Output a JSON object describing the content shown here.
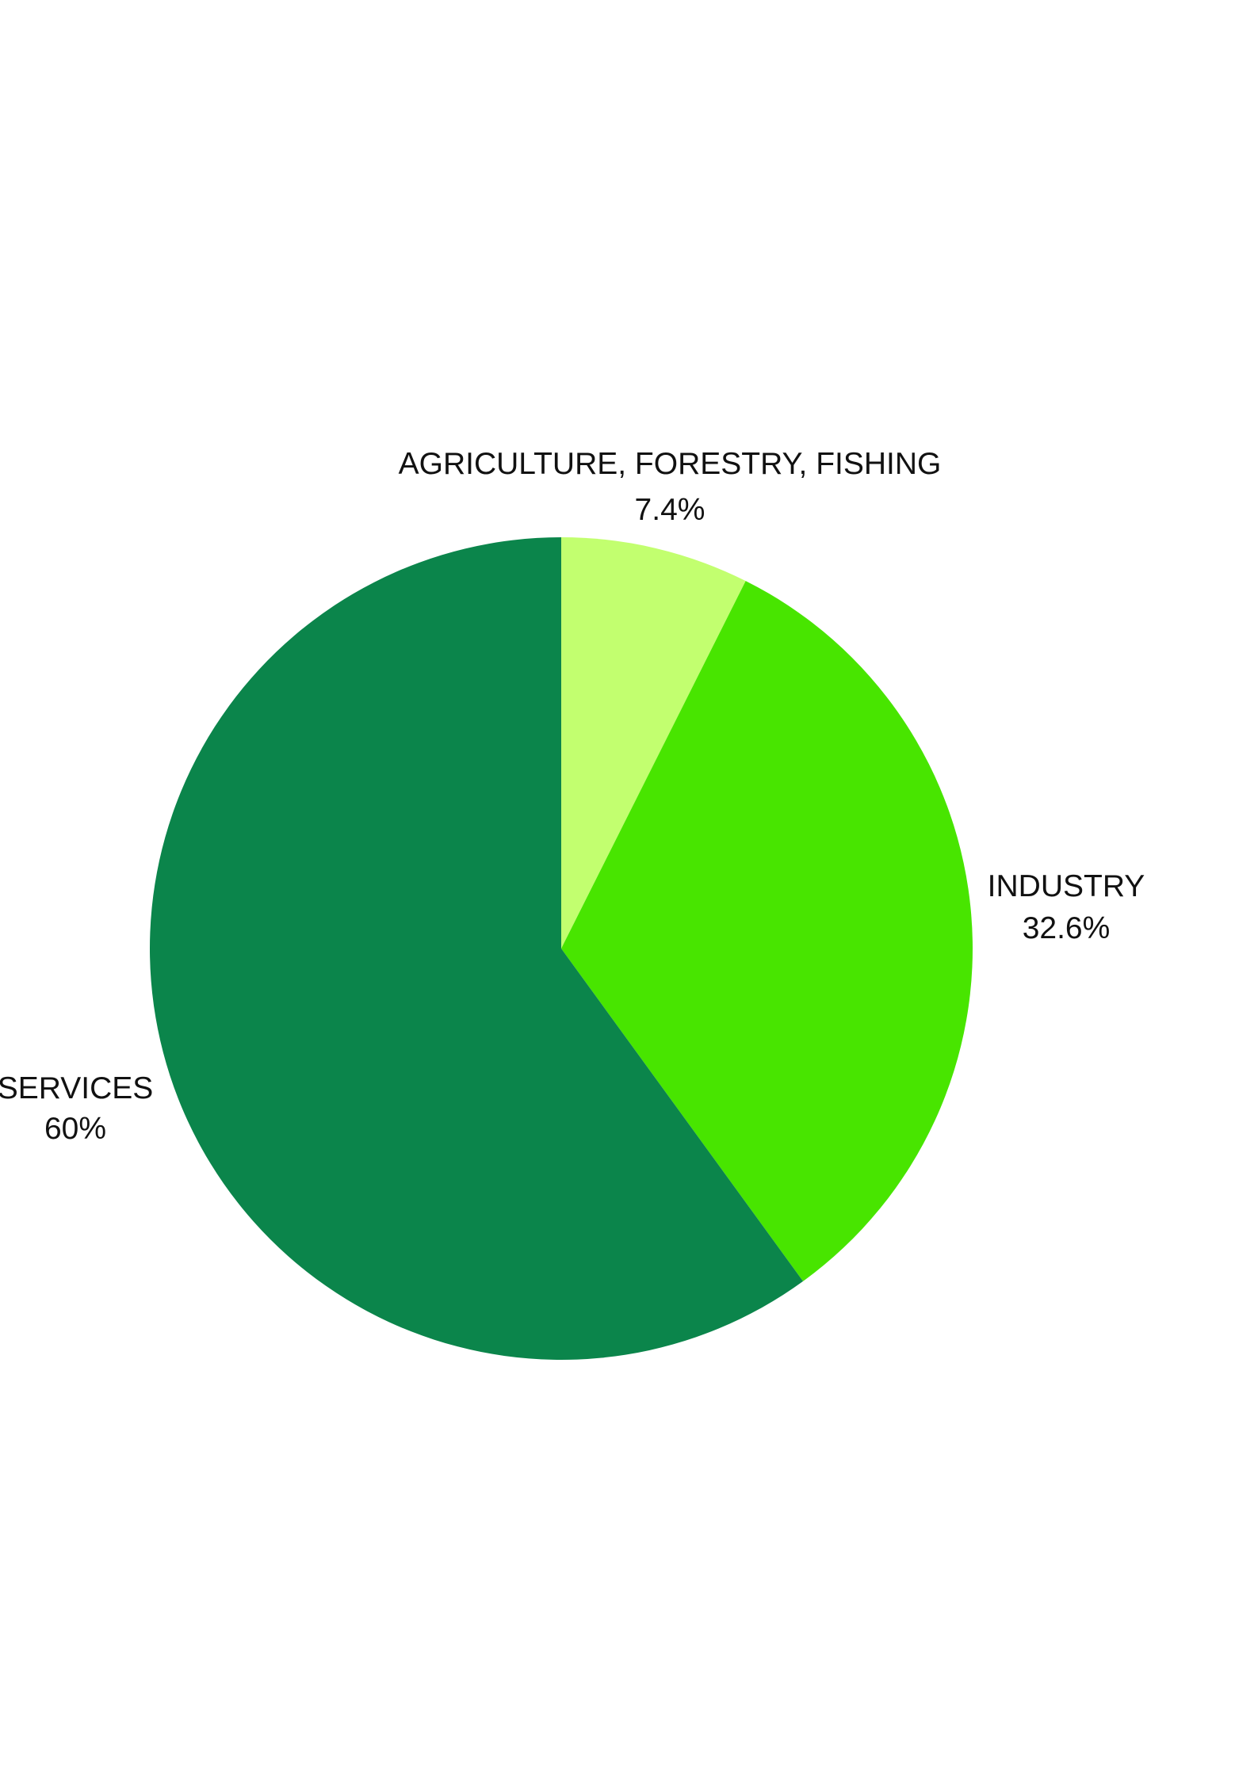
{
  "chart_data": {
    "type": "pie",
    "slices": [
      {
        "label": "AGRICULTURE, FORESTRY, FISHING",
        "value": 7.4,
        "value_label": "7.4%",
        "color": "#c2ff6f"
      },
      {
        "label": "INDUSTRY",
        "value": 32.6,
        "value_label": "32.6%",
        "color": "#48e500"
      },
      {
        "label": "SERVICES",
        "value": 60,
        "value_label": "60%",
        "color": "#0b854b"
      }
    ],
    "start_angle": "12 o'clock",
    "direction": "clockwise",
    "legend": "none",
    "labels": "outside slices"
  }
}
